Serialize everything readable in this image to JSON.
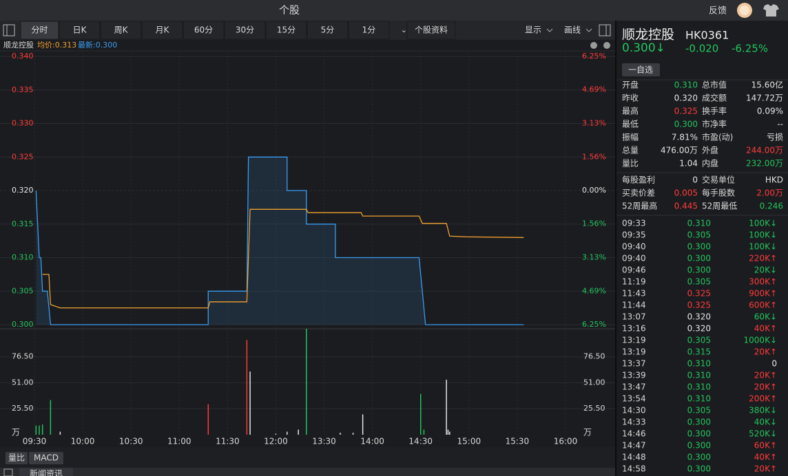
{
  "window": {
    "title": "个股",
    "feedback": "反馈"
  },
  "tabs": [
    "分时",
    "日K",
    "周K",
    "月K",
    "60分",
    "30分",
    "15分",
    "5分",
    "1分",
    "个股资料"
  ],
  "active_tab": 0,
  "tools": [
    "显示",
    "画线"
  ],
  "chart_header": {
    "name": "顺龙控股",
    "avg": "均价:0.313",
    "latest": "最新:0.300"
  },
  "colors": {
    "up": "#ff3b3b",
    "down": "#22c55e",
    "flat": "#e4e4e4"
  },
  "chart_data": [
    {
      "type": "line",
      "xlim": [
        0,
        330
      ],
      "ylim": [
        0.3,
        0.34
      ],
      "yticks": [
        {
          "value": 0.34,
          "label": "0.340"
        },
        0.335,
        {
          "value": 0.33,
          "label": "0.330"
        },
        0.325,
        {
          "value": 0.32,
          "label": "0.320"
        },
        0.315,
        {
          "value": 0.31,
          "label": "0.310"
        },
        0.305,
        {
          "value": 0.3,
          "label": "0.300"
        }
      ],
      "y2lim": [
        -6.25,
        6.25
      ],
      "y2ticks": [
        {
          "value": 6.25,
          "label": "6.25%"
        },
        {
          "value": 4.69,
          "label": "4.69%"
        },
        {
          "value": 3.13,
          "label": "3.13%"
        },
        {
          "value": 1.56,
          "label": "1.56%"
        },
        {
          "value": 0,
          "label": "0.00%"
        },
        {
          "value": -1.56,
          "label": "1.56%"
        },
        {
          "value": -3.13,
          "label": "3.13%"
        },
        {
          "value": -4.69,
          "label": "4.69%"
        },
        {
          "value": -6.25,
          "label": "6.25%"
        }
      ],
      "series": [
        {
          "name": "最新",
          "color": "#3a9cf0",
          "area": true,
          "x": [
            1,
            3,
            4,
            5,
            8,
            10,
            108,
            108,
            132,
            133,
            157,
            157,
            169,
            169,
            187,
            187,
            239,
            241,
            243,
            304
          ],
          "values": [
            0.32,
            0.31,
            0.31,
            0.305,
            0.305,
            0.3,
            0.3,
            0.305,
            0.305,
            0.325,
            0.325,
            0.32,
            0.32,
            0.315,
            0.315,
            0.31,
            0.31,
            0.305,
            0.3,
            0.3
          ]
        },
        {
          "name": "均价",
          "color": "#f0a030",
          "x": [
            5,
            9,
            10,
            16,
            108,
            109,
            132,
            134,
            169,
            170,
            203,
            204,
            239,
            241,
            256,
            258,
            268,
            304
          ],
          "values": [
            0.3075,
            0.3075,
            0.303,
            0.3025,
            0.3025,
            0.3034,
            0.3034,
            0.3172,
            0.3172,
            0.3167,
            0.3167,
            0.3162,
            0.3162,
            0.3151,
            0.3151,
            0.3132,
            0.3131,
            0.313
          ]
        }
      ],
      "grid": true
    },
    {
      "type": "bar",
      "xlim": [
        0,
        330
      ],
      "xticks": [
        {
          "value": 0,
          "label": "09:30"
        },
        {
          "value": 30,
          "label": "10:00"
        },
        {
          "value": 60,
          "label": "10:30"
        },
        {
          "value": 90,
          "label": "11:00"
        },
        {
          "value": 120,
          "label": "11:30"
        },
        {
          "value": 150,
          "label": "12:00"
        },
        {
          "value": 180,
          "label": "13:30"
        },
        {
          "value": 210,
          "label": "14:00"
        },
        {
          "value": 240,
          "label": "14:30"
        },
        {
          "value": 270,
          "label": "15:00"
        },
        {
          "value": 300,
          "label": "15:30"
        },
        {
          "value": 330,
          "label": "16:00"
        }
      ],
      "ylim": [
        0,
        106
      ],
      "yticks": [
        {
          "value": 25.5,
          "label": "25.50"
        },
        {
          "value": 51,
          "label": "51.00"
        },
        {
          "value": 76.5,
          "label": "76.50"
        }
      ],
      "y_unit": "万",
      "x": [
        1,
        3,
        5,
        10,
        16,
        108,
        132,
        134,
        150,
        157,
        164,
        169,
        190,
        198,
        204,
        240,
        242,
        256,
        257,
        258
      ],
      "values": [
        9,
        9,
        10,
        34,
        3,
        30,
        93,
        62,
        1,
        3,
        5,
        104,
        2,
        2,
        20,
        40,
        5,
        54,
        5,
        3
      ],
      "bar_tones": [
        "down",
        "down",
        "down",
        "down",
        "flat",
        "up",
        "up",
        "flat",
        "flat",
        "flat",
        "flat",
        "down",
        "flat",
        "flat",
        "flat",
        "down",
        "down",
        "flat",
        "flat",
        "flat"
      ]
    }
  ],
  "indicator_tabs": [
    "量比",
    "MACD"
  ],
  "bottom_tab": "新闻资讯",
  "quote": {
    "name": "顺龙控股",
    "code": "HK0361",
    "price": "0.300↓",
    "change": "-0.020",
    "percent": "-6.25%",
    "tone": "down",
    "watch_button": "一自选"
  },
  "stats": [
    [
      {
        "label": "开盘",
        "value": "0.310",
        "tone": "down"
      },
      {
        "label": "总市值",
        "value": "15.60亿",
        "tone": "flat"
      }
    ],
    [
      {
        "label": "昨收",
        "value": "0.320",
        "tone": "flat"
      },
      {
        "label": "成交额",
        "value": "147.72万",
        "tone": "flat"
      }
    ],
    [
      {
        "label": "最高",
        "value": "0.325",
        "tone": "up"
      },
      {
        "label": "换手率",
        "value": "0.09%",
        "tone": "flat"
      }
    ],
    [
      {
        "label": "最低",
        "value": "0.300",
        "tone": "down"
      },
      {
        "label": "市净率",
        "value": "--",
        "tone": "flat"
      }
    ],
    [
      {
        "label": "振幅",
        "value": "7.81%",
        "tone": "flat"
      },
      {
        "label": "市盈(动)",
        "value": "亏损",
        "tone": "flat"
      }
    ],
    [
      {
        "label": "总量",
        "value": "476.00万",
        "tone": "flat"
      },
      {
        "label": "外盘",
        "value": "244.00万",
        "tone": "up"
      }
    ],
    [
      {
        "label": "量比",
        "value": "1.04",
        "tone": "flat"
      },
      {
        "label": "内盘",
        "value": "232.00万",
        "tone": "down"
      }
    ]
  ],
  "stats2": [
    [
      {
        "label": "每股盈利",
        "value": "0",
        "tone": "flat"
      },
      {
        "label": "交易单位",
        "value": "HKD",
        "tone": "flat"
      }
    ],
    [
      {
        "label": "买卖价差",
        "value": "0.005",
        "tone": "up"
      },
      {
        "label": "每手股数",
        "value": "2.00万",
        "tone": "up"
      }
    ],
    [
      {
        "label": "52周最高",
        "value": "0.445",
        "tone": "up"
      },
      {
        "label": "52周最低",
        "value": "0.246",
        "tone": "down"
      }
    ]
  ],
  "trades": [
    {
      "time": "09:33",
      "price": "0.310",
      "price_tone": "down",
      "volume": "100K↓",
      "volume_tone": "down"
    },
    {
      "time": "09:35",
      "price": "0.305",
      "price_tone": "down",
      "volume": "100K↓",
      "volume_tone": "down"
    },
    {
      "time": "09:40",
      "price": "0.300",
      "price_tone": "down",
      "volume": "100K↓",
      "volume_tone": "down"
    },
    {
      "time": "09:40",
      "price": "0.300",
      "price_tone": "down",
      "volume": "220K↑",
      "volume_tone": "up"
    },
    {
      "time": "09:46",
      "price": "0.300",
      "price_tone": "down",
      "volume": "20K↓",
      "volume_tone": "down"
    },
    {
      "time": "11:19",
      "price": "0.305",
      "price_tone": "down",
      "volume": "300K↑",
      "volume_tone": "up"
    },
    {
      "time": "11:43",
      "price": "0.325",
      "price_tone": "up",
      "volume": "900K↑",
      "volume_tone": "up"
    },
    {
      "time": "11:44",
      "price": "0.325",
      "price_tone": "up",
      "volume": "600K↑",
      "volume_tone": "up"
    },
    {
      "time": "13:07",
      "price": "0.320",
      "price_tone": "flat",
      "volume": "60K↓",
      "volume_tone": "down"
    },
    {
      "time": "13:16",
      "price": "0.320",
      "price_tone": "flat",
      "volume": "40K↑",
      "volume_tone": "up"
    },
    {
      "time": "13:19",
      "price": "0.305",
      "price_tone": "down",
      "volume": "1000K↓",
      "volume_tone": "down"
    },
    {
      "time": "13:19",
      "price": "0.315",
      "price_tone": "down",
      "volume": "20K↑",
      "volume_tone": "up"
    },
    {
      "time": "13:37",
      "price": "0.310",
      "price_tone": "down",
      "volume": "0",
      "volume_tone": "flat"
    },
    {
      "time": "13:39",
      "price": "0.310",
      "price_tone": "down",
      "volume": "20K↑",
      "volume_tone": "up"
    },
    {
      "time": "13:47",
      "price": "0.310",
      "price_tone": "down",
      "volume": "20K↑",
      "volume_tone": "up"
    },
    {
      "time": "13:54",
      "price": "0.310",
      "price_tone": "down",
      "volume": "200K↑",
      "volume_tone": "up"
    },
    {
      "time": "14:30",
      "price": "0.305",
      "price_tone": "down",
      "volume": "380K↓",
      "volume_tone": "down"
    },
    {
      "time": "14:33",
      "price": "0.300",
      "price_tone": "down",
      "volume": "40K↓",
      "volume_tone": "down"
    },
    {
      "time": "14:46",
      "price": "0.300",
      "price_tone": "down",
      "volume": "520K↓",
      "volume_tone": "down"
    },
    {
      "time": "14:47",
      "price": "0.300",
      "price_tone": "down",
      "volume": "60K↑",
      "volume_tone": "up"
    },
    {
      "time": "14:48",
      "price": "0.300",
      "price_tone": "down",
      "volume": "40K↑",
      "volume_tone": "up"
    },
    {
      "time": "14:58",
      "price": "0.300",
      "price_tone": "down",
      "volume": "20K↑",
      "volume_tone": "up"
    }
  ]
}
